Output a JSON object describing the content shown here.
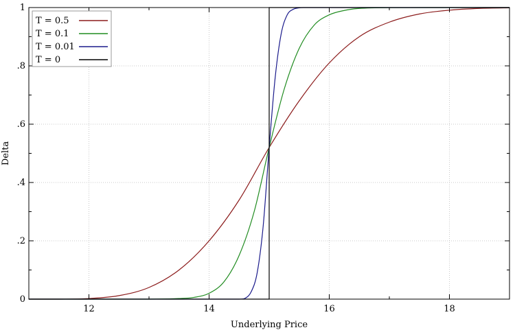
{
  "chart_data": {
    "type": "line",
    "title": "",
    "xlabel": "Underlying Price",
    "ylabel": "Delta",
    "xlim": [
      11,
      19
    ],
    "ylim": [
      0,
      1
    ],
    "x_ticks": [
      {
        "value": 12,
        "label": "12"
      },
      {
        "value": 14,
        "label": "14"
      },
      {
        "value": 16,
        "label": "16"
      },
      {
        "value": 18,
        "label": "18"
      }
    ],
    "y_ticks": [
      {
        "value": 0,
        "label": "0"
      },
      {
        "value": 0.2,
        "label": ".2"
      },
      {
        "value": 0.4,
        "label": ".4"
      },
      {
        "value": 0.6,
        "label": ".6"
      },
      {
        "value": 0.8,
        "label": ".8"
      },
      {
        "value": 1,
        "label": "1"
      }
    ],
    "grid": true,
    "legend_position": "top-left",
    "series": [
      {
        "name": "T = 0.5",
        "color": "#8b1a1a",
        "x": [
          11.0,
          11.5,
          12.0,
          12.5,
          13.0,
          13.5,
          14.0,
          14.5,
          15.0,
          15.5,
          16.0,
          16.5,
          17.0,
          17.5,
          18.0,
          18.5,
          19.0
        ],
        "y": [
          0.0,
          0.0,
          0.002,
          0.012,
          0.04,
          0.1,
          0.2,
          0.34,
          0.52,
          0.68,
          0.81,
          0.9,
          0.95,
          0.978,
          0.991,
          0.997,
          0.999
        ]
      },
      {
        "name": "T = 0.1",
        "color": "#1f8b1f",
        "x": [
          11.0,
          12.0,
          13.0,
          13.5,
          13.75,
          14.0,
          14.25,
          14.5,
          14.75,
          15.0,
          15.25,
          15.5,
          15.75,
          16.0,
          16.25,
          16.5,
          17.0,
          18.0,
          19.0
        ],
        "y": [
          0.0,
          0.0,
          0.0,
          0.002,
          0.006,
          0.02,
          0.06,
          0.15,
          0.3,
          0.52,
          0.72,
          0.86,
          0.94,
          0.975,
          0.99,
          0.997,
          0.9995,
          1.0,
          1.0
        ]
      },
      {
        "name": "T = 0.01",
        "color": "#1a1a8b",
        "x": [
          11.0,
          13.0,
          14.0,
          14.5,
          14.6,
          14.7,
          14.8,
          14.9,
          15.0,
          15.1,
          15.2,
          15.3,
          15.4,
          15.5,
          15.6,
          16.0,
          17.0,
          18.0,
          19.0
        ],
        "y": [
          0.0,
          0.0,
          0.0,
          0.0,
          0.003,
          0.025,
          0.09,
          0.25,
          0.52,
          0.76,
          0.91,
          0.975,
          0.994,
          0.999,
          1.0,
          1.0,
          1.0,
          1.0,
          1.0
        ]
      },
      {
        "name": "T = 0",
        "color": "#000000",
        "x": [
          11.0,
          15.0,
          15.0,
          19.0
        ],
        "y": [
          0.0,
          0.0,
          1.0,
          1.0
        ]
      }
    ]
  }
}
